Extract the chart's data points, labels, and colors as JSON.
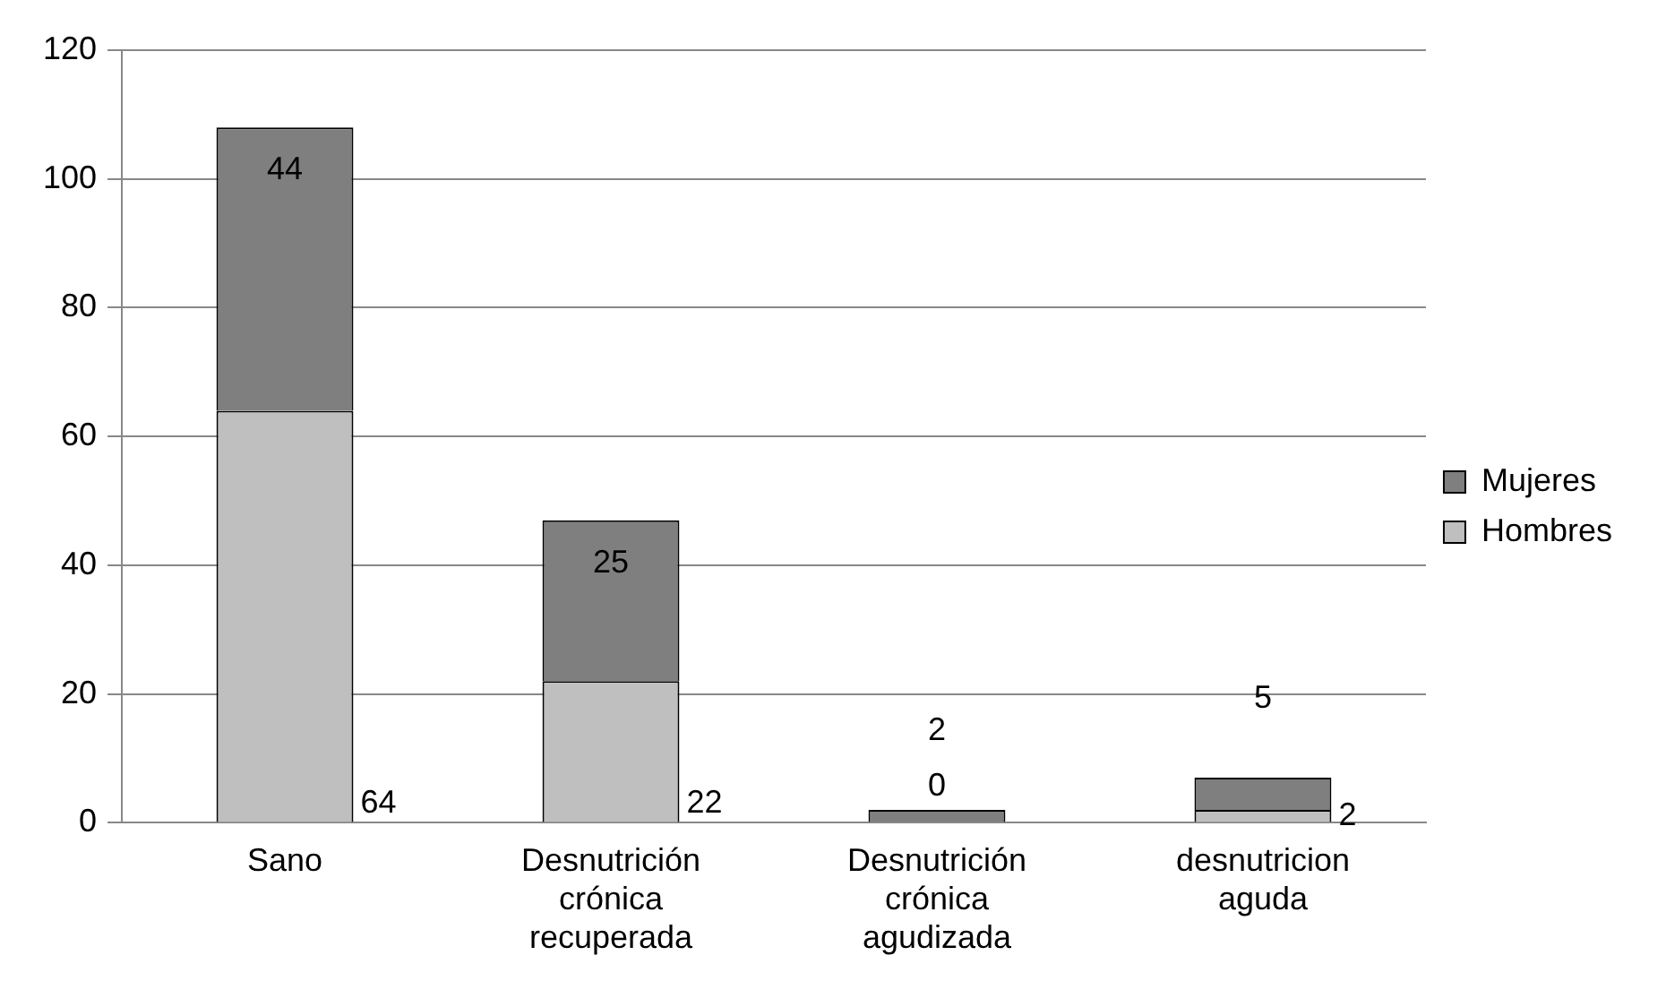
{
  "chart_data": {
    "type": "bar",
    "stacked": true,
    "categories": [
      "Sano",
      "Desnutrición crónica recuperada",
      "Desnutrición crónica agudizada",
      "desnutricion aguda"
    ],
    "series": [
      {
        "name": "Hombres",
        "color": "#bfbfbf",
        "values": [
          64,
          22,
          0,
          2
        ]
      },
      {
        "name": "Mujeres",
        "color": "#7f7f7f",
        "values": [
          44,
          25,
          2,
          5
        ]
      }
    ],
    "ylim": [
      0,
      120
    ],
    "yticks": [
      0,
      20,
      40,
      60,
      80,
      100,
      120
    ],
    "grid": "y",
    "legend": "right",
    "data_labels": true
  }
}
